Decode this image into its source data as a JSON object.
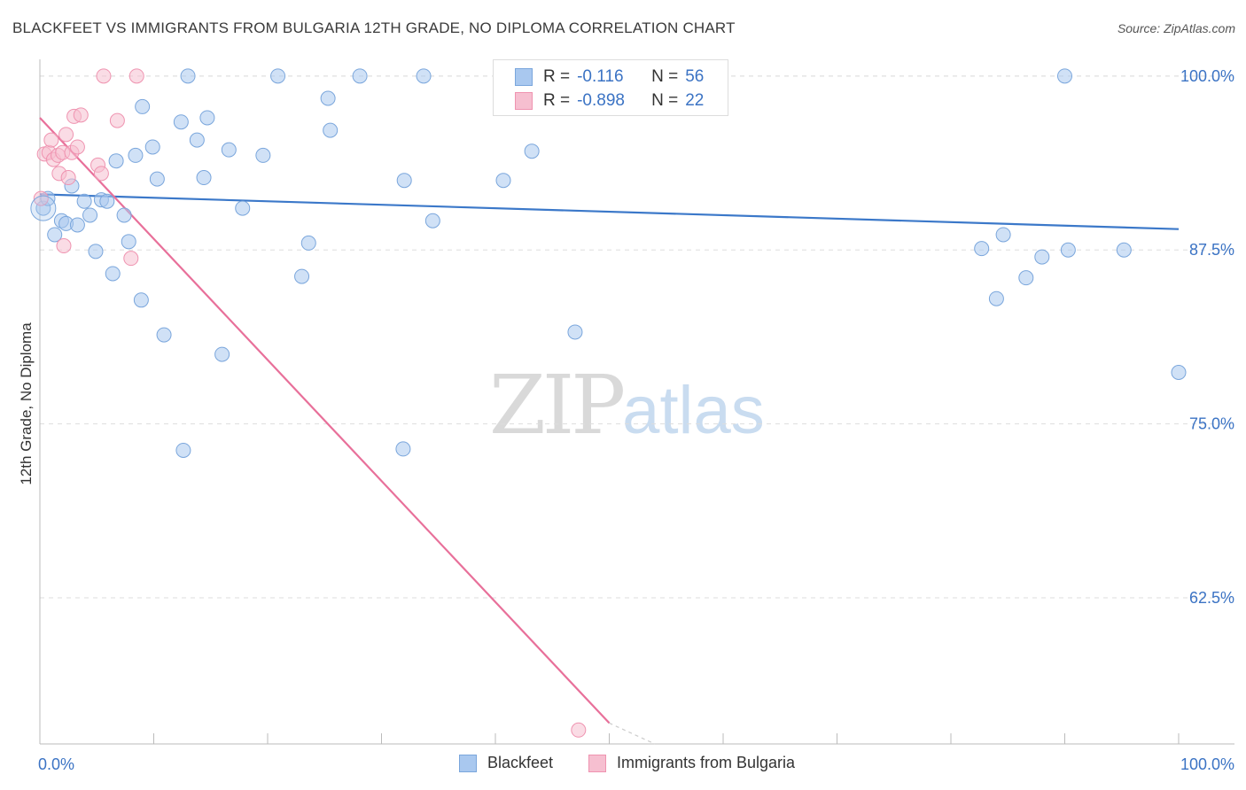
{
  "title": "BLACKFEET VS IMMIGRANTS FROM BULGARIA 12TH GRADE, NO DIPLOMA CORRELATION CHART",
  "source": "Source: ZipAtlas.com",
  "watermark": {
    "zip": "ZIP",
    "atlas": "atlas"
  },
  "colors": {
    "blue": "#a9c8ef",
    "blue_stroke": "#7aa6dc",
    "blue_line": "#3b78c9",
    "pink": "#f6bfd0",
    "pink_stroke": "#ef93b0",
    "pink_line": "#e8709a",
    "tick_text": "#3b73c4",
    "grid": "#dddddd"
  },
  "legend_stats": [
    {
      "r_label": "R =",
      "r_value": "-0.116",
      "n_label": "N =",
      "n_value": "56"
    },
    {
      "r_label": "R =",
      "r_value": "-0.898",
      "n_label": "N =",
      "n_value": "22"
    }
  ],
  "chart_data": {
    "type": "scatter",
    "xlabel": "",
    "ylabel": "12th Grade, No Diploma",
    "xlim": [
      0,
      100
    ],
    "ylim": [
      52,
      101.2
    ],
    "x_tick_labels": [
      "0.0%",
      "100.0%"
    ],
    "y_ticks": [
      100.0,
      87.5,
      75.0,
      62.5
    ],
    "y_tick_labels": [
      "100.0%",
      "87.5%",
      "75.0%",
      "62.5%"
    ],
    "grid": "horizontal dashed",
    "legend": "bottom-center",
    "series": [
      {
        "name": "Blackfeet",
        "color": "blue",
        "trend": {
          "x0": 0,
          "y0": 91.5,
          "x1": 100,
          "y1": 89.0
        },
        "points": [
          [
            0.3,
            90.5
          ],
          [
            0.7,
            91.2
          ],
          [
            1.3,
            88.6
          ],
          [
            1.9,
            89.6
          ],
          [
            2.3,
            89.4
          ],
          [
            2.8,
            92.1
          ],
          [
            3.3,
            89.3
          ],
          [
            3.9,
            91.0
          ],
          [
            4.4,
            90.0
          ],
          [
            4.9,
            87.4
          ],
          [
            5.4,
            91.1
          ],
          [
            5.9,
            91.0
          ],
          [
            6.4,
            85.8
          ],
          [
            6.7,
            93.9
          ],
          [
            7.4,
            90.0
          ],
          [
            7.8,
            88.1
          ],
          [
            8.4,
            94.3
          ],
          [
            8.9,
            83.9
          ],
          [
            9.0,
            97.8
          ],
          [
            9.9,
            94.9
          ],
          [
            10.3,
            92.6
          ],
          [
            10.9,
            81.4
          ],
          [
            12.4,
            96.7
          ],
          [
            12.6,
            73.1
          ],
          [
            13.0,
            100.0
          ],
          [
            13.8,
            95.4
          ],
          [
            14.4,
            92.7
          ],
          [
            14.7,
            97.0
          ],
          [
            16.0,
            80.0
          ],
          [
            16.6,
            94.7
          ],
          [
            17.8,
            90.5
          ],
          [
            19.6,
            94.3
          ],
          [
            20.9,
            100.0
          ],
          [
            23.0,
            85.6
          ],
          [
            23.6,
            88.0
          ],
          [
            25.3,
            98.4
          ],
          [
            25.5,
            96.1
          ],
          [
            28.1,
            100.0
          ],
          [
            31.9,
            73.2
          ],
          [
            32.0,
            92.5
          ],
          [
            33.7,
            100.0
          ],
          [
            34.5,
            89.6
          ],
          [
            40.7,
            92.5
          ],
          [
            43.2,
            94.6
          ],
          [
            47.0,
            81.6
          ],
          [
            47.5,
            100.0
          ],
          [
            50.0,
            100.0
          ],
          [
            90.0,
            100.0
          ],
          [
            82.7,
            87.6
          ],
          [
            84.6,
            88.6
          ],
          [
            88.0,
            87.0
          ],
          [
            90.3,
            87.5
          ],
          [
            84.0,
            84.0
          ],
          [
            86.6,
            85.5
          ],
          [
            95.2,
            87.5
          ],
          [
            100.0,
            78.7
          ]
        ]
      },
      {
        "name": "Immigrants from Bulgaria",
        "color": "pink",
        "trend": {
          "x0": 0,
          "y0": 97.0,
          "x1": 50.0,
          "y1": 53.5,
          "dash_to_x": 54.0,
          "dash_to_y": 52.0
        },
        "points": [
          [
            0.1,
            91.2
          ],
          [
            0.4,
            94.4
          ],
          [
            0.8,
            94.5
          ],
          [
            1.0,
            95.4
          ],
          [
            1.2,
            94.0
          ],
          [
            1.6,
            94.3
          ],
          [
            1.7,
            93.0
          ],
          [
            2.0,
            94.5
          ],
          [
            2.1,
            87.8
          ],
          [
            2.3,
            95.8
          ],
          [
            2.5,
            92.7
          ],
          [
            2.8,
            94.5
          ],
          [
            3.0,
            97.1
          ],
          [
            3.3,
            94.9
          ],
          [
            3.6,
            97.2
          ],
          [
            5.1,
            93.6
          ],
          [
            5.4,
            93.0
          ],
          [
            5.6,
            100.0
          ],
          [
            6.8,
            96.8
          ],
          [
            8.0,
            86.9
          ],
          [
            8.5,
            100.0
          ],
          [
            47.3,
            53.0
          ]
        ]
      }
    ]
  },
  "bottom_legend": [
    {
      "label": "Blackfeet"
    },
    {
      "label": "Immigrants from Bulgaria"
    }
  ]
}
